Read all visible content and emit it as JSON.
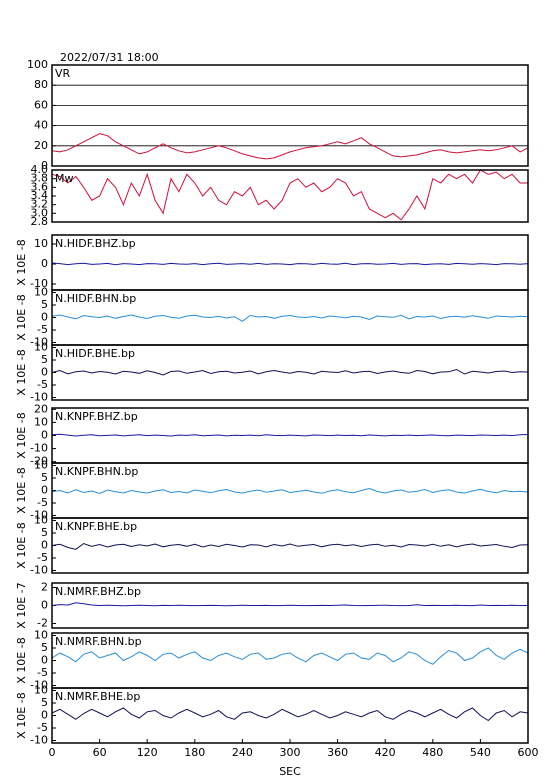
{
  "chart_data": {
    "type": "line",
    "title": "2022/07/31 18:00",
    "xlabel": "SEC",
    "xlim": [
      0,
      600
    ],
    "xticks": [
      0,
      60,
      120,
      180,
      240,
      300,
      360,
      420,
      480,
      540,
      600
    ],
    "x": [
      0,
      10,
      20,
      30,
      40,
      50,
      60,
      70,
      80,
      90,
      100,
      110,
      120,
      130,
      140,
      150,
      160,
      170,
      180,
      190,
      200,
      210,
      220,
      230,
      240,
      250,
      260,
      270,
      280,
      290,
      300,
      310,
      320,
      330,
      340,
      350,
      360,
      370,
      380,
      390,
      400,
      410,
      420,
      430,
      440,
      450,
      460,
      470,
      480,
      490,
      500,
      510,
      520,
      530,
      540,
      550,
      560,
      570,
      580,
      590,
      600
    ],
    "panels": [
      {
        "ylim": [
          0,
          100
        ],
        "yticks": [
          0,
          20,
          40,
          60,
          80,
          100
        ],
        "grid": true,
        "series": [
          {
            "name": "VR",
            "color": "#d0103a",
            "values": [
              15,
              14,
              16,
              20,
              24,
              28,
              32,
              30,
              24,
              20,
              16,
              12,
              14,
              18,
              22,
              18,
              15,
              13,
              14,
              16,
              18,
              20,
              18,
              15,
              12,
              10,
              8,
              7,
              8,
              11,
              14,
              16,
              18,
              19,
              20,
              22,
              24,
              22,
              25,
              28,
              22,
              18,
              14,
              10,
              9,
              10,
              11,
              13,
              15,
              16,
              14,
              13,
              14,
              15,
              16,
              15,
              16,
              18,
              20,
              14,
              18
            ]
          }
        ]
      },
      {
        "ylim": [
          2.8,
          4.0
        ],
        "yticks": [
          2.8,
          {
            "value": 3,
            "label": "3.0"
          },
          3.2,
          3.4,
          3.6,
          3.8,
          {
            "value": 4,
            "label": "4.0"
          }
        ],
        "grid": false,
        "series": [
          {
            "name": "Mw",
            "color": "#d0103a",
            "values": [
              3.9,
              3.85,
              3.7,
              3.85,
              3.6,
              3.3,
              3.4,
              3.8,
              3.6,
              3.2,
              3.7,
              3.4,
              3.9,
              3.3,
              3.0,
              3.8,
              3.5,
              3.9,
              3.7,
              3.4,
              3.6,
              3.3,
              3.2,
              3.5,
              3.4,
              3.6,
              3.2,
              3.3,
              3.1,
              3.3,
              3.7,
              3.8,
              3.6,
              3.7,
              3.5,
              3.6,
              3.8,
              3.7,
              3.4,
              3.5,
              3.1,
              3.0,
              2.9,
              3.0,
              2.85,
              3.1,
              3.4,
              3.1,
              3.8,
              3.7,
              3.9,
              3.8,
              3.9,
              3.7,
              4.0,
              3.9,
              3.95,
              3.8,
              3.9,
              3.7,
              3.7
            ]
          }
        ]
      },
      {
        "ylabel": "X 10E -8",
        "ylim": [
          -13,
          14.5
        ],
        "yticks": [
          -10,
          0,
          10
        ],
        "grid": false,
        "series": [
          {
            "name": "N.HIDF.BHZ.bp",
            "color": "#1a1aa0",
            "values": [
              0.5,
              0.2,
              -0.3,
              0.1,
              0.4,
              -0.2,
              0,
              0.3,
              -0.4,
              0.2,
              0,
              -0.3,
              0.2,
              0.1,
              -0.2,
              0.3,
              0,
              -0.1,
              0.2,
              -0.3,
              0.1,
              0.4,
              -0.2,
              0,
              0.2,
              -0.1,
              0.3,
              -0.2,
              0.1,
              0,
              -0.3,
              0.2,
              0.1,
              -0.2,
              0.3,
              0,
              -0.1,
              0.4,
              -0.3,
              0.1,
              0.2,
              -0.1,
              0,
              0.3,
              -0.2,
              0.1,
              0.2,
              -0.3,
              0,
              0.1,
              -0.2,
              0.3,
              0.1,
              -0.1,
              0.2,
              0,
              -0.3,
              0.2,
              0.1,
              -0.1,
              0.2
            ]
          }
        ]
      },
      {
        "ylabel": "X 10E -8",
        "ylim": [
          -11,
          11
        ],
        "yticks": [
          -10,
          -5,
          0,
          5,
          10
        ],
        "grid": false,
        "series": [
          {
            "name": "N.HIDF.BHN.bp",
            "color": "#2a8fd8",
            "values": [
              0.5,
              1,
              0.2,
              -0.5,
              0.8,
              0.3,
              0,
              0.6,
              -0.3,
              0.4,
              1,
              0.2,
              -0.4,
              0.5,
              0.8,
              0.1,
              -0.3,
              0.6,
              0.9,
              0.2,
              0,
              0.5,
              -0.2,
              0.3,
              -1.5,
              0.8,
              0.2,
              0.4,
              -0.3,
              0.5,
              0.8,
              0.2,
              0,
              0.4,
              -0.2,
              0.6,
              0.3,
              -0.1,
              0.5,
              0.2,
              -0.8,
              0.6,
              0.3,
              0.1,
              0.9,
              -0.5,
              0.4,
              0.2,
              0.6,
              -0.4,
              0.3,
              0.5,
              0.1,
              0.7,
              0.2,
              -0.3,
              0.6,
              0.4,
              0.2,
              0.5,
              0.3
            ]
          }
        ]
      },
      {
        "ylabel": "X 10E -8",
        "ylim": [
          -11,
          11
        ],
        "yticks": [
          -10,
          -5,
          0,
          5,
          10
        ],
        "grid": false,
        "series": [
          {
            "name": "N.HIDF.BHE.bp",
            "color": "#10105a",
            "values": [
              0,
              0.8,
              -0.5,
              0.3,
              0.6,
              -0.2,
              0.4,
              0.1,
              -0.6,
              0.5,
              0.2,
              -0.3,
              0.7,
              0,
              -1,
              0.4,
              0.6,
              -0.3,
              0.2,
              0.8,
              -0.4,
              0.3,
              0.5,
              -0.2,
              0.1,
              0.6,
              -0.5,
              0.3,
              0.8,
              0.2,
              -0.3,
              0.4,
              0.1,
              -0.6,
              0.5,
              0.2,
              0,
              0.7,
              -0.2,
              0.3,
              0.5,
              -0.4,
              0.2,
              0.6,
              0,
              -0.3,
              0.8,
              0.4,
              -0.5,
              0.2,
              0.3,
              1.2,
              -0.6,
              0.5,
              0.2,
              -0.2,
              0.4,
              0.6,
              0,
              0.3,
              0.2
            ]
          }
        ]
      },
      {
        "ylabel": "X 10E -8",
        "ylim": [
          -21,
          21
        ],
        "yticks": [
          -20,
          -10,
          0,
          10,
          20
        ],
        "grid": false,
        "series": [
          {
            "name": "N.KNPF.BHZ.bp",
            "color": "#1a1aa0",
            "values": [
              0.5,
              1,
              0.3,
              -0.4,
              0.2,
              0.6,
              -0.2,
              0.1,
              0.4,
              -0.3,
              0.2,
              0.5,
              -0.1,
              0.3,
              0,
              -0.4,
              0.3,
              0.1,
              0.5,
              -0.2,
              0.1,
              0.4,
              -0.3,
              0.2,
              0,
              0.3,
              -0.2,
              0.5,
              0.1,
              -0.1,
              0.3,
              0,
              -0.3,
              0.4,
              0.2,
              -0.1,
              0.3,
              0,
              0.2,
              -0.2,
              0.4,
              0.1,
              -0.3,
              0.2,
              0,
              0.3,
              -0.1,
              0.2,
              0.4,
              0,
              -0.2,
              0.3,
              0.1,
              -0.1,
              0.4,
              0.2,
              0,
              0.3,
              -0.1,
              0.5,
              0.8
            ]
          }
        ]
      },
      {
        "ylabel": "X 10E -8",
        "ylim": [
          -11,
          11
        ],
        "yticks": [
          -10,
          -5,
          0,
          5,
          10
        ],
        "grid": false,
        "series": [
          {
            "name": "N.KNPF.BHN.bp",
            "color": "#2a8fd8",
            "values": [
              -0.5,
              0,
              -1,
              0.3,
              -0.8,
              -0.2,
              -1.2,
              0.2,
              -0.5,
              -1,
              0,
              -0.6,
              -1,
              -0.2,
              0.3,
              -0.8,
              -0.4,
              -1,
              0.2,
              -0.3,
              -0.9,
              -0.1,
              0.4,
              -0.6,
              -1,
              -0.3,
              0.2,
              -0.7,
              -0.2,
              0.3,
              -0.8,
              -0.4,
              0.1,
              -0.6,
              -1.1,
              -0.2,
              0.3,
              -0.5,
              -0.9,
              0,
              0.8,
              -0.4,
              -1,
              -0.2,
              0.2,
              -0.7,
              -0.3,
              0.4,
              -0.8,
              -0.1,
              0.3,
              -0.6,
              -1,
              -0.2,
              0.5,
              -0.4,
              -0.9,
              0,
              -0.5,
              -0.3,
              -0.6
            ]
          }
        ]
      },
      {
        "ylabel": "X 10E -8",
        "ylim": [
          -11,
          11
        ],
        "yticks": [
          -10,
          -5,
          0,
          5,
          10
        ],
        "grid": false,
        "series": [
          {
            "name": "N.KNPF.BHE.bp",
            "color": "#10105a",
            "values": [
              0,
              0.5,
              -0.8,
              -1.5,
              0.8,
              -0.3,
              0.4,
              -0.6,
              0.2,
              0.5,
              -0.4,
              0.3,
              -0.2,
              0.6,
              -0.5,
              0.1,
              0.4,
              -0.3,
              0.5,
              -0.6,
              0.2,
              -0.4,
              0.5,
              0,
              -0.6,
              0.3,
              0.2,
              -0.5,
              0.4,
              -0.2,
              0.6,
              -0.3,
              0.1,
              0.4,
              -0.5,
              0.2,
              0.5,
              -0.1,
              0.3,
              -0.4,
              0.2,
              0.5,
              -0.3,
              0.1,
              -0.6,
              0.4,
              0.2,
              -0.2,
              0.5,
              -0.3,
              0.3,
              -0.5,
              0.2,
              0.6,
              -0.2,
              0.1,
              0.4,
              -0.3,
              -0.8,
              0.2,
              0.3
            ]
          }
        ]
      },
      {
        "ylabel": "X 10E -7",
        "ylim": [
          -2.5,
          2.5
        ],
        "yticks": [
          -2,
          0,
          2
        ],
        "grid": false,
        "series": [
          {
            "name": "N.NMRF.BHZ.bp",
            "color": "#1a1aa0",
            "values": [
              0,
              0.1,
              0.05,
              0.3,
              0.2,
              0.05,
              0,
              0.03,
              0,
              -0.02,
              0,
              0.02,
              0,
              -0.02,
              0.01,
              0,
              0.02,
              0,
              -0.01,
              0,
              0.01,
              0,
              -0.02,
              0,
              0.02,
              0,
              0,
              0.01,
              -0.01,
              0,
              0.02,
              0,
              -0.01,
              0,
              0.01,
              0,
              0.02,
              0.05,
              0,
              -0.01,
              0,
              0.01,
              0.03,
              0,
              -0.01,
              0,
              0.08,
              0,
              0.01,
              0,
              0,
              0.02,
              0,
              -0.01,
              0.05,
              0,
              0.01,
              0,
              0.03,
              0,
              0
            ]
          }
        ]
      },
      {
        "ylabel": "X 10E -8",
        "ylim": [
          -11,
          11
        ],
        "yticks": [
          -10,
          -5,
          0,
          5,
          10
        ],
        "grid": false,
        "series": [
          {
            "name": "N.NMRF.BHN.bp",
            "color": "#2a8fd8",
            "values": [
              1,
              3,
              1.5,
              -0.5,
              2.5,
              3.5,
              1,
              2,
              3,
              0,
              1.5,
              3.5,
              2,
              0,
              2.5,
              3,
              1,
              2.5,
              3.5,
              1,
              0,
              2,
              3,
              1.5,
              0.5,
              2.5,
              3,
              0.5,
              1,
              2.5,
              3,
              1,
              -0.5,
              2,
              3,
              1.5,
              0,
              2.5,
              3,
              1,
              0.5,
              3,
              2,
              -0.5,
              1,
              3.5,
              2.5,
              0,
              -1.5,
              1.5,
              4,
              3,
              0,
              1,
              3.5,
              5,
              2,
              0.5,
              3,
              4.5,
              3
            ]
          }
        ]
      },
      {
        "ylabel": "X 10E -8",
        "ylim": [
          -11,
          11
        ],
        "yticks": [
          -10,
          -5,
          0,
          5,
          10
        ],
        "grid": false,
        "series": [
          {
            "name": "N.NMRF.BHE.bp",
            "color": "#10105a",
            "values": [
              1,
              2.5,
              0.5,
              -1.5,
              0.8,
              2.5,
              1,
              -0.5,
              1.5,
              3,
              0.5,
              -1,
              1.5,
              2,
              0,
              -1,
              1,
              2.5,
              1,
              -0.5,
              0.5,
              2,
              -0.5,
              -1.5,
              1,
              1.5,
              0,
              -1,
              0.5,
              2.5,
              1,
              -0.5,
              0.5,
              2,
              0.5,
              -1,
              0,
              1.5,
              0.5,
              -0.5,
              1,
              2,
              -0.5,
              -1.5,
              0.5,
              2,
              1,
              -0.5,
              1,
              2.5,
              0.5,
              -1,
              1.5,
              3,
              0,
              -2,
              1,
              2,
              -0.5,
              1.5,
              1
            ]
          }
        ]
      }
    ]
  }
}
